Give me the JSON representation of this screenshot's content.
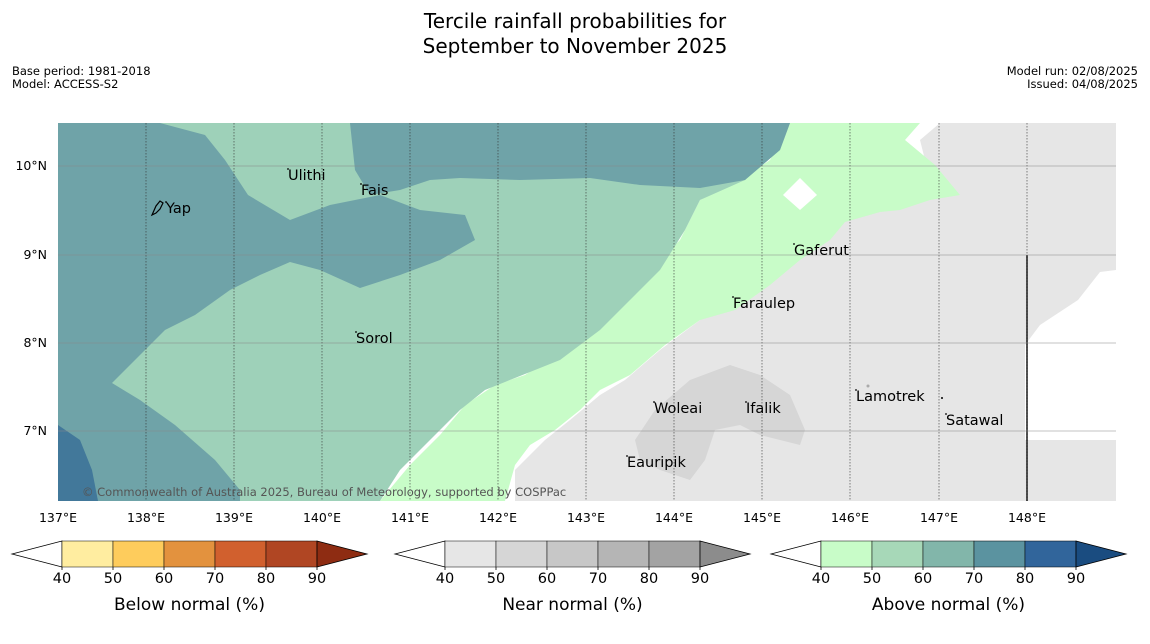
{
  "title": {
    "line1": "Tercile rainfall probabilities for",
    "line2": "September to November 2025"
  },
  "meta": {
    "base_period": "Base period: 1981-2018",
    "model": "Model: ACCESS-S2",
    "model_run": "Model run: 02/08/2025",
    "issued": "Issued: 04/08/2025"
  },
  "map": {
    "lat_labels": [
      "10°N",
      "9°N",
      "8°N",
      "7°N"
    ],
    "lon_labels": [
      "137°E",
      "138°E",
      "139°E",
      "140°E",
      "141°E",
      "142°E",
      "143°E",
      "144°E",
      "145°E",
      "146°E",
      "147°E",
      "148°E"
    ],
    "places": [
      "Yap",
      "Ulithi",
      "Fais",
      "Sorol",
      "Gaferut",
      "Faraulep",
      "Woleai",
      "Ifalik",
      "Eauripik",
      "Lamotrek",
      "Satawal"
    ],
    "copyright": "© Commonwealth of Australia 2025, Bureau of Meteorology, supported by COSPPac"
  },
  "colorbars": [
    {
      "title": "Below normal (%)",
      "ticks": [
        "40",
        "50",
        "60",
        "70",
        "80",
        "90"
      ],
      "colors": [
        "#ffeda0",
        "#fecc5c",
        "#e3923e",
        "#d1602e",
        "#b04623",
        "#8e2c12"
      ]
    },
    {
      "title": "Near normal (%)",
      "ticks": [
        "40",
        "50",
        "60",
        "70",
        "80",
        "90"
      ],
      "colors": [
        "#e6e6e6",
        "#d6d6d6",
        "#c7c7c7",
        "#b5b5b5",
        "#a3a3a3",
        "#8c8c8c"
      ]
    },
    {
      "title": "Above normal (%)",
      "ticks": [
        "40",
        "50",
        "60",
        "70",
        "80",
        "90"
      ],
      "colors": [
        "#c8fcc8",
        "#a7d8b8",
        "#82b6aa",
        "#5b93a0",
        "#31659b",
        "#1a4c80"
      ]
    }
  ],
  "palette": {
    "above_40_50": "#c8fcc8",
    "above_50_60": "#9ed1b9",
    "above_60_70": "#6fa3a8",
    "above_70_80": "#42789a",
    "near_40_50": "#e6e6e6",
    "near_50_60": "#d6d6d6"
  }
}
